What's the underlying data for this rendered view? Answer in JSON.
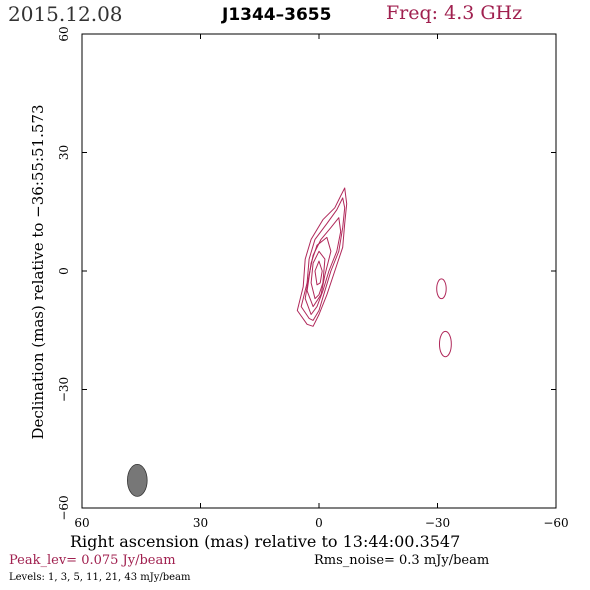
{
  "header": {
    "date": "2015.12.08",
    "source": "J1344–3655",
    "freq": "Freq: 4.3 GHz"
  },
  "footer": {
    "xlabel": "Right ascension (mas) relative to 13:44:00.3547",
    "ylabel": "Declination (mas) relative to −36:55:51.573",
    "peak": "Peak_lev=  0.075 Jy/beam",
    "rms": "Rms_noise=   0.3 mJy/beam",
    "levels": "Levels:    1,    3,    5,   11,   21,   43 mJy/beam"
  },
  "colors": {
    "contour": "#b0285a",
    "beam": "#777777",
    "text_accent": "#a0204f"
  },
  "chart_data": {
    "type": "contour",
    "xlabel": "Right ascension (mas) relative to 13:44:00.3547",
    "ylabel": "Declination (mas) relative to −36:55:51.573",
    "xlim": [
      60,
      -60
    ],
    "ylim": [
      -60,
      60
    ],
    "xticks": [
      {
        "v": 60,
        "label": "60"
      },
      {
        "v": 30,
        "label": "30"
      },
      {
        "v": 0,
        "label": "0"
      },
      {
        "v": -30,
        "label": "−30"
      },
      {
        "v": -60,
        "label": "−60"
      }
    ],
    "yticks": [
      {
        "v": -60,
        "label": "−60"
      },
      {
        "v": -30,
        "label": "−30"
      },
      {
        "v": 0,
        "label": "0"
      },
      {
        "v": 30,
        "label": "30"
      },
      {
        "v": 60,
        "label": "60"
      }
    ],
    "levels_mJy": [
      1,
      3,
      5,
      11,
      21,
      43
    ],
    "peak_Jy_per_beam": 0.075,
    "rms_mJy_per_beam": 0.3,
    "core": {
      "x": 0,
      "y": 0
    },
    "contours": [
      {
        "level": 1,
        "points": [
          [
            3,
            -13.5
          ],
          [
            5.5,
            -10
          ],
          [
            4,
            -4
          ],
          [
            3.5,
            3
          ],
          [
            2,
            8
          ],
          [
            -1,
            13
          ],
          [
            -4,
            16
          ],
          [
            -5.5,
            19
          ],
          [
            -6.5,
            21
          ],
          [
            -7,
            17
          ],
          [
            -6.5,
            12
          ],
          [
            -6,
            6
          ],
          [
            -4,
            0
          ],
          [
            -2,
            -6
          ],
          [
            0,
            -11
          ],
          [
            1.5,
            -14
          ]
        ]
      },
      {
        "level": 3,
        "points": [
          [
            2.5,
            -12
          ],
          [
            4.5,
            -9
          ],
          [
            3,
            -3
          ],
          [
            2.5,
            3
          ],
          [
            1,
            8
          ],
          [
            -2,
            12
          ],
          [
            -4.5,
            15.5
          ],
          [
            -6,
            18.5
          ],
          [
            -6.5,
            16
          ],
          [
            -6,
            11
          ],
          [
            -5,
            5
          ],
          [
            -3,
            0
          ],
          [
            -1.5,
            -5
          ],
          [
            0,
            -10
          ],
          [
            1.5,
            -12.5
          ]
        ]
      },
      {
        "level": 5,
        "points": [
          [
            2,
            -11
          ],
          [
            3.5,
            -7
          ],
          [
            2.5,
            -1
          ],
          [
            1.5,
            4
          ],
          [
            -0.5,
            8
          ],
          [
            -3,
            11
          ],
          [
            -5,
            13.5
          ],
          [
            -5.5,
            10
          ],
          [
            -4.5,
            5
          ],
          [
            -2.5,
            0
          ],
          [
            -1,
            -5
          ],
          [
            0.5,
            -9
          ]
        ]
      },
      {
        "level": 11,
        "points": [
          [
            1.5,
            -9
          ],
          [
            3,
            -5
          ],
          [
            2,
            2
          ],
          [
            0.5,
            6.5
          ],
          [
            -2,
            8.5
          ],
          [
            -3,
            5
          ],
          [
            -1.5,
            -1
          ],
          [
            -0.5,
            -6
          ]
        ]
      },
      {
        "level": 21,
        "points": [
          [
            1,
            -7
          ],
          [
            2,
            -3
          ],
          [
            1.5,
            2
          ],
          [
            0,
            5
          ],
          [
            -1.5,
            3
          ],
          [
            -1,
            -3
          ],
          [
            0,
            -6
          ]
        ]
      },
      {
        "level": 43,
        "points": [
          [
            0.5,
            -3.5
          ],
          [
            1,
            0
          ],
          [
            0,
            2.5
          ],
          [
            -0.8,
            0
          ],
          [
            -0.3,
            -3
          ]
        ]
      }
    ],
    "components": [
      {
        "x": -31,
        "y": -4.5,
        "rx": 1.2,
        "ry": 2.5
      },
      {
        "x": -32,
        "y": -18.5,
        "rx": 1.5,
        "ry": 3.2
      }
    ],
    "beam": {
      "x": 46,
      "y": -53,
      "major": 9,
      "minor": 2.5,
      "pa_deg": 0
    }
  }
}
